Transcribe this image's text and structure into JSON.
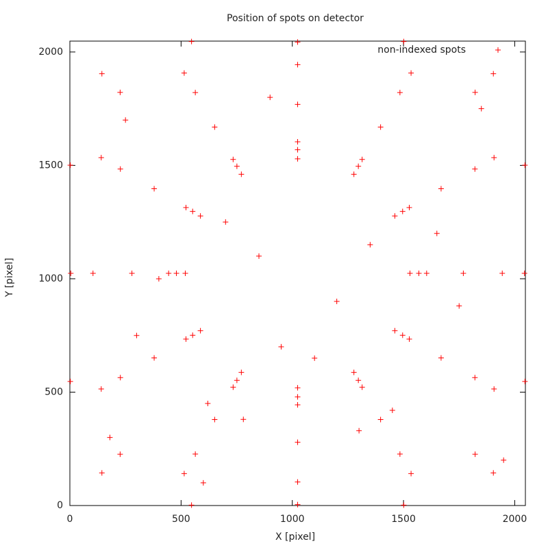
{
  "chart_data": {
    "type": "scatter",
    "title": "Position of spots on detector",
    "x_label": "X [pixel]",
    "y_label": "Y [pixel]",
    "xlim": [
      0,
      2048
    ],
    "ylim": [
      0,
      2048
    ],
    "xticks": [
      0,
      500,
      1000,
      1500,
      2000
    ],
    "yticks": [
      0,
      500,
      1000,
      1500,
      2000
    ],
    "legend": "top-right",
    "marker": "+",
    "series": [
      {
        "name": "non-indexed spots",
        "color": "#ff0000",
        "x": [
          1529,
          1461,
          1277,
          1024,
          771,
          587,
          519,
          587,
          771,
          1024,
          1277,
          1461,
          1569,
          1496,
          1297,
          1024,
          751,
          552,
          479,
          552,
          751,
          1024,
          1297,
          1496,
          1604,
          1526,
          1314,
          1024,
          734,
          522,
          444,
          522,
          734,
          1024,
          1314,
          1526,
          1769,
          1669,
          1397,
          1024,
          651,
          379,
          279,
          379,
          651,
          1024,
          1397,
          1669,
          1944,
          1821,
          1484,
          1024,
          564,
          227,
          104,
          227,
          564,
          1024,
          1484,
          1821,
          2044,
          1907,
          1534,
          1024,
          514,
          141,
          4,
          141,
          514,
          1024,
          1534,
          1907,
          1822,
          226,
          226,
          1822,
          2046,
          1501,
          2,
          547,
          1501,
          2046,
          2,
          547,
          1904,
          144,
          144,
          1904,
          850,
          1200,
          950,
          700,
          1350,
          300,
          1750,
          620,
          1300,
          900,
          250,
          1850,
          400,
          1650,
          1100,
          780,
          1450,
          180,
          1950,
          600
        ],
        "y": [
          1024,
          1277,
          1461,
          1529,
          1461,
          1277,
          1024,
          771,
          587,
          519,
          587,
          771,
          1024,
          1297,
          1496,
          1569,
          1496,
          1297,
          1024,
          751,
          552,
          479,
          552,
          751,
          1024,
          1314,
          1526,
          1604,
          1526,
          1314,
          1024,
          734,
          522,
          444,
          522,
          734,
          1024,
          1397,
          1669,
          1769,
          1669,
          1397,
          1024,
          651,
          379,
          279,
          379,
          651,
          1024,
          1484,
          1821,
          1944,
          1821,
          1484,
          1024,
          564,
          227,
          104,
          227,
          564,
          1024,
          1534,
          1907,
          2044,
          1907,
          1534,
          1024,
          514,
          141,
          4,
          141,
          514,
          1822,
          1822,
          226,
          226,
          1501,
          2046,
          1501,
          2046,
          2,
          547,
          547,
          2,
          1904,
          1904,
          144,
          144,
          1100,
          900,
          700,
          1250,
          1150,
          750,
          880,
          450,
          330,
          1800,
          1700,
          1750,
          1000,
          1200,
          650,
          380,
          420,
          300,
          200,
          100
        ]
      }
    ]
  }
}
